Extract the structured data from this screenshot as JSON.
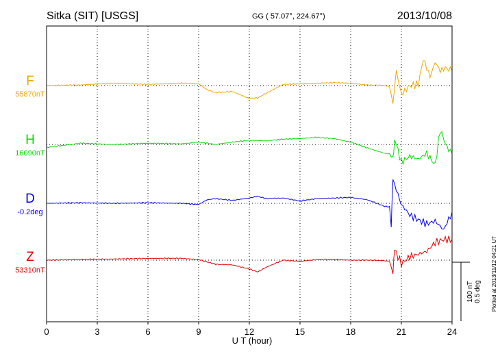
{
  "chart_data": {
    "type": "line",
    "header": {
      "station": "Sitka (SIT)  [USGS]",
      "coords": "GG ( 57.07°, 224.67°)",
      "date": "2013/10/08"
    },
    "xlabel": "U T (hour)",
    "xlim": [
      0,
      24
    ],
    "x_ticks": [
      0,
      3,
      6,
      9,
      12,
      15,
      18,
      21,
      24
    ],
    "grid": true,
    "units_scale_value": 100,
    "scale_labels": [
      "100 nT",
      "0.5 deg"
    ],
    "plotted_note": "Plotted at 2013/11/12 04:21  UT",
    "series": [
      {
        "name": "F",
        "baseline_label": "55870nT",
        "color": "#f0a800",
        "x": [
          0,
          2,
          4,
          6,
          8,
          9,
          9.5,
          10,
          11,
          12,
          12.5,
          13,
          14,
          15,
          16,
          17,
          18,
          19,
          20,
          20.3,
          20.5,
          20.7,
          21,
          21.5,
          22,
          22.3,
          22.7,
          23,
          23.3,
          23.6,
          24
        ],
        "y": [
          0,
          1,
          4,
          2,
          4,
          3,
          -7,
          -12,
          -10,
          -22,
          -21,
          -13,
          2,
          3,
          4,
          5,
          4,
          1,
          0,
          -2,
          -30,
          25,
          -15,
          0,
          2,
          45,
          15,
          40,
          25,
          30,
          25
        ]
      },
      {
        "name": "H",
        "baseline_label": "16090nT",
        "color": "#00dd00",
        "x": [
          0,
          2,
          4,
          6,
          8,
          9,
          10,
          11,
          12,
          13,
          14,
          15,
          16,
          17,
          18,
          19,
          20,
          20.3,
          20.5,
          20.6,
          21,
          21.5,
          22,
          22.5,
          23,
          23.3,
          23.7,
          24
        ],
        "y": [
          -5,
          2,
          0,
          2,
          1,
          4,
          0,
          4,
          7,
          6,
          9,
          10,
          12,
          10,
          4,
          -6,
          -15,
          -16,
          -25,
          10,
          -30,
          -20,
          -25,
          -15,
          -35,
          25,
          -5,
          -15
        ]
      },
      {
        "name": "D",
        "baseline_label": "-0.2deg",
        "color": "#0000ee",
        "x": [
          0,
          2,
          4,
          6,
          8,
          9,
          9.5,
          10,
          11,
          12,
          12.5,
          13,
          14,
          15,
          16,
          17,
          18,
          19,
          20,
          20.3,
          20.4,
          20.5,
          20.8,
          21,
          21.5,
          22,
          22.5,
          23,
          23.5,
          24
        ],
        "y": [
          0,
          1,
          0,
          1,
          0,
          -2,
          6,
          8,
          5,
          9,
          12,
          8,
          9,
          4,
          8,
          9,
          10,
          6,
          -5,
          -6,
          -40,
          40,
          15,
          -2,
          -20,
          -28,
          -35,
          -30,
          -45,
          -15
        ]
      },
      {
        "name": "Z",
        "baseline_label": "53310nT",
        "color": "#e00000",
        "x": [
          0,
          2,
          4,
          6,
          8,
          9,
          9.5,
          10,
          11,
          12,
          12.5,
          13,
          14,
          15,
          16,
          17,
          18,
          19,
          20,
          20.3,
          20.5,
          20.6,
          21,
          21.5,
          22,
          22.5,
          23,
          23.5,
          24
        ],
        "y": [
          0,
          1,
          2,
          3,
          3,
          1,
          -3,
          -7,
          -8,
          -15,
          -20,
          -12,
          0,
          -2,
          1,
          1,
          0,
          0,
          -1,
          -2,
          -22,
          18,
          -6,
          6,
          10,
          15,
          30,
          35,
          35
        ]
      }
    ]
  }
}
